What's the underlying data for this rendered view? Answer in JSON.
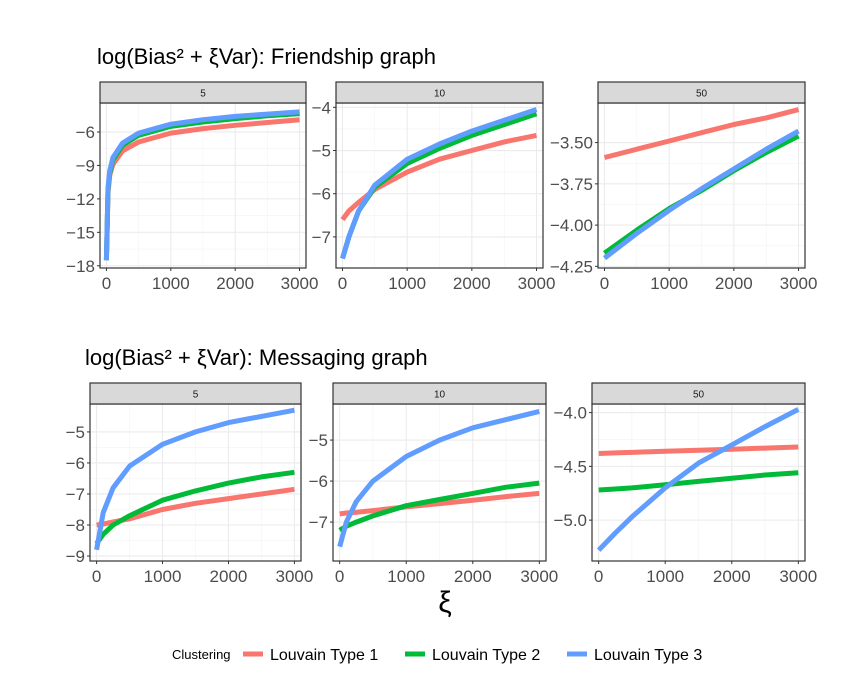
{
  "chart_data": [
    {
      "type": "line",
      "title": "log(Bias² + ξVar): Friendship graph",
      "xlabel": "",
      "ylabel": "",
      "grid": true,
      "facets": [
        {
          "label": "5",
          "xlim": [
            -100,
            3100
          ],
          "ylim": [
            -18.2,
            -3.4
          ],
          "xticks": [
            0,
            1000,
            2000,
            3000
          ],
          "yticks": [
            -6,
            -9,
            -12,
            -15,
            -18
          ],
          "ytick_labels": [
            "−6",
            "−9",
            "−12",
            "−15",
            "−18"
          ],
          "x": [
            0,
            25,
            50,
            100,
            250,
            500,
            1000,
            1500,
            2000,
            2500,
            3000
          ],
          "series": [
            {
              "name": "Louvain Type 1",
              "values": [
                -17.5,
                -11.5,
                -9.9,
                -8.9,
                -7.7,
                -6.9,
                -6.1,
                -5.7,
                -5.4,
                -5.15,
                -4.9
              ]
            },
            {
              "name": "Louvain Type 2",
              "values": [
                -17.5,
                -11.2,
                -9.7,
                -8.5,
                -7.2,
                -6.3,
                -5.5,
                -5.1,
                -4.8,
                -4.55,
                -4.35
              ]
            },
            {
              "name": "Louvain Type 3",
              "values": [
                -17.5,
                -11.0,
                -9.5,
                -8.3,
                -7.0,
                -6.1,
                -5.3,
                -4.9,
                -4.6,
                -4.4,
                -4.2
              ]
            }
          ]
        },
        {
          "label": "10",
          "xlim": [
            -100,
            3100
          ],
          "ylim": [
            -7.72,
            -3.9
          ],
          "xticks": [
            0,
            1000,
            2000,
            3000
          ],
          "yticks": [
            -4,
            -5,
            -6,
            -7
          ],
          "ytick_labels": [
            "−4",
            "−5",
            "−6",
            "−7"
          ],
          "x": [
            0,
            100,
            250,
            500,
            1000,
            1500,
            2000,
            2500,
            3000
          ],
          "series": [
            {
              "name": "Louvain Type 1",
              "values": [
                -6.6,
                -6.4,
                -6.2,
                -5.9,
                -5.5,
                -5.2,
                -5.0,
                -4.8,
                -4.65
              ]
            },
            {
              "name": "Louvain Type 2",
              "values": [
                -7.5,
                -7.0,
                -6.4,
                -5.85,
                -5.3,
                -4.95,
                -4.65,
                -4.4,
                -4.15
              ]
            },
            {
              "name": "Louvain Type 3",
              "values": [
                -7.5,
                -7.0,
                -6.4,
                -5.8,
                -5.2,
                -4.85,
                -4.55,
                -4.3,
                -4.05
              ]
            }
          ]
        },
        {
          "label": "50",
          "xlim": [
            -100,
            3100
          ],
          "ylim": [
            -4.26,
            -3.26
          ],
          "xticks": [
            0,
            1000,
            2000,
            3000
          ],
          "yticks": [
            -3.5,
            -3.75,
            -4.0,
            -4.25
          ],
          "ytick_labels": [
            "−3.50",
            "−3.75",
            "−4.00",
            "−4.25"
          ],
          "x": [
            0,
            500,
            1000,
            1500,
            2000,
            2500,
            3000
          ],
          "series": [
            {
              "name": "Louvain Type 1",
              "values": [
                -3.59,
                -3.54,
                -3.49,
                -3.44,
                -3.39,
                -3.35,
                -3.3
              ]
            },
            {
              "name": "Louvain Type 2",
              "values": [
                -4.17,
                -4.03,
                -3.9,
                -3.79,
                -3.67,
                -3.56,
                -3.46
              ]
            },
            {
              "name": "Louvain Type 3",
              "values": [
                -4.2,
                -4.05,
                -3.91,
                -3.78,
                -3.66,
                -3.54,
                -3.43
              ]
            }
          ]
        }
      ]
    },
    {
      "type": "line",
      "title": "log(Bias² + ξVar): Messaging graph",
      "xlabel": "ξ",
      "ylabel": "",
      "grid": true,
      "facets": [
        {
          "label": "5",
          "xlim": [
            -100,
            3100
          ],
          "ylim": [
            -9.16,
            -4.1
          ],
          "xticks": [
            0,
            1000,
            2000,
            3000
          ],
          "yticks": [
            -5,
            -6,
            -7,
            -8,
            -9
          ],
          "ytick_labels": [
            "−5",
            "−6",
            "−7",
            "−8",
            "−9"
          ],
          "x": [
            0,
            100,
            250,
            500,
            1000,
            1500,
            2000,
            2500,
            3000
          ],
          "series": [
            {
              "name": "Louvain Type 1",
              "values": [
                -8.0,
                -7.97,
                -7.9,
                -7.8,
                -7.5,
                -7.3,
                -7.15,
                -7.0,
                -6.85
              ]
            },
            {
              "name": "Louvain Type 2",
              "values": [
                -8.6,
                -8.3,
                -8.0,
                -7.7,
                -7.2,
                -6.9,
                -6.65,
                -6.45,
                -6.3
              ]
            },
            {
              "name": "Louvain Type 3",
              "values": [
                -8.8,
                -7.6,
                -6.8,
                -6.1,
                -5.4,
                -5.0,
                -4.7,
                -4.5,
                -4.3
              ]
            }
          ]
        },
        {
          "label": "10",
          "xlim": [
            -100,
            3100
          ],
          "ylim": [
            -7.95,
            -4.12
          ],
          "xticks": [
            0,
            1000,
            2000,
            3000
          ],
          "yticks": [
            -5,
            -6,
            -7
          ],
          "ytick_labels": [
            "−5",
            "−6",
            "−7"
          ],
          "x": [
            0,
            100,
            250,
            500,
            1000,
            1500,
            2000,
            2500,
            3000
          ],
          "series": [
            {
              "name": "Louvain Type 1",
              "values": [
                -6.8,
                -6.78,
                -6.76,
                -6.72,
                -6.63,
                -6.55,
                -6.47,
                -6.38,
                -6.3
              ]
            },
            {
              "name": "Louvain Type 2",
              "values": [
                -7.2,
                -7.1,
                -7.0,
                -6.85,
                -6.6,
                -6.45,
                -6.3,
                -6.15,
                -6.05
              ]
            },
            {
              "name": "Louvain Type 3",
              "values": [
                -7.6,
                -7.0,
                -6.5,
                -6.0,
                -5.4,
                -5.0,
                -4.7,
                -4.5,
                -4.3
              ]
            }
          ]
        },
        {
          "label": "50",
          "xlim": [
            -100,
            3100
          ],
          "ylim": [
            -5.38,
            -3.92
          ],
          "xticks": [
            0,
            1000,
            2000,
            3000
          ],
          "yticks": [
            -4.0,
            -4.5,
            -5.0
          ],
          "ytick_labels": [
            "−4.0",
            "−4.5",
            "−5.0"
          ],
          "x": [
            0,
            250,
            500,
            1000,
            1500,
            2000,
            2500,
            3000
          ],
          "series": [
            {
              "name": "Louvain Type 1",
              "values": [
                -4.38,
                -4.375,
                -4.37,
                -4.36,
                -4.35,
                -4.34,
                -4.33,
                -4.32
              ]
            },
            {
              "name": "Louvain Type 2",
              "values": [
                -4.72,
                -4.71,
                -4.7,
                -4.67,
                -4.64,
                -4.61,
                -4.58,
                -4.56
              ]
            },
            {
              "name": "Louvain Type 3",
              "values": [
                -5.28,
                -5.12,
                -4.97,
                -4.7,
                -4.47,
                -4.3,
                -4.13,
                -3.97
              ]
            }
          ]
        }
      ]
    }
  ],
  "legend": {
    "title": "Clustering",
    "placement": "bottom",
    "items": [
      {
        "label": "Louvain Type 1",
        "color": "#F8766D"
      },
      {
        "label": "Louvain Type 2",
        "color": "#00BA38"
      },
      {
        "label": "Louvain Type 3",
        "color": "#619CFF"
      }
    ]
  },
  "colors": {
    "strip": "#D9D9D9",
    "grid": "#EBEBEB",
    "text": "#4D4D4D"
  }
}
